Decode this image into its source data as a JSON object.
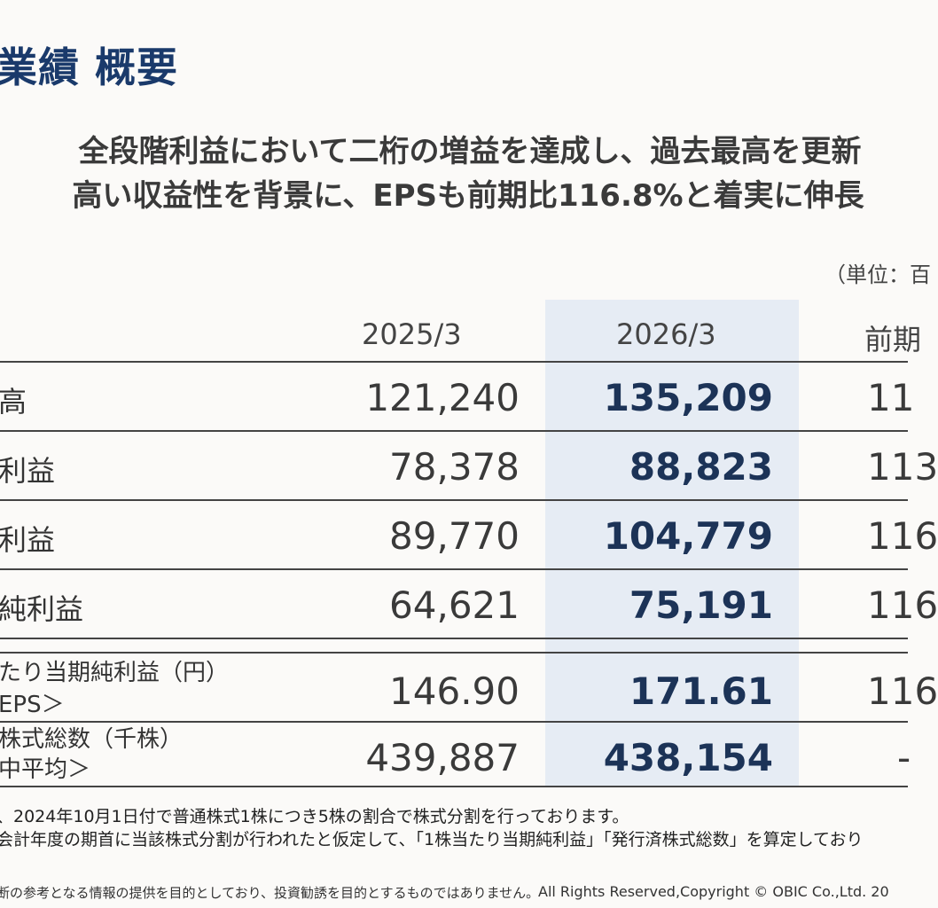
{
  "page": {
    "title": "業績 概要",
    "headline_1": "全段階利益において二桁の増益を達成し、過去最高を更新",
    "headline_2": "高い収益性を背景に、EPSも前期比116.8%と着実に伸長",
    "unit": "（単位：百"
  },
  "table": {
    "columns": [
      "2025/3",
      "2026/3",
      "前期"
    ],
    "rows": [
      {
        "label": "高",
        "v2025": "121,240",
        "v2026": "135,209",
        "yoy": "11"
      },
      {
        "label": "利益",
        "v2025": "78,378",
        "v2026": "88,823",
        "yoy": "113"
      },
      {
        "label": "利益",
        "v2025": "89,770",
        "v2026": "104,779",
        "yoy": "116"
      },
      {
        "label": "純利益",
        "v2025": "64,621",
        "v2026": "75,191",
        "yoy": "116"
      },
      {
        "label_line1": "たり当期純利益（円）",
        "label_line2": "EPS＞",
        "v2025": "146.90",
        "v2026": "171.61",
        "yoy": "116"
      },
      {
        "label_line1": "株式総数（千株）",
        "label_line2": "中平均＞",
        "v2025": "439,887",
        "v2026": "438,154",
        "yoy": "-"
      }
    ]
  },
  "notes": [
    "、2024年10月1日付で普通株式1株につき5株の割合で株式分割を行っております。",
    "会計年度の期首に当該株式分割が行われたと仮定して、「1株当たり当期純利益」「発行済株式総数」を算定しており"
  ],
  "footer": {
    "disclaimer": "断の参考となる情報の提供を目的としており、投資勧誘を目的とするものではありません。",
    "copyright": "All Rights Reserved,Copyright © OBIC Co.,Ltd. 20"
  },
  "colors": {
    "title": "#1a3a6b",
    "highlight_column": "#e6ecf4",
    "highlight_value": "#1c3357"
  }
}
